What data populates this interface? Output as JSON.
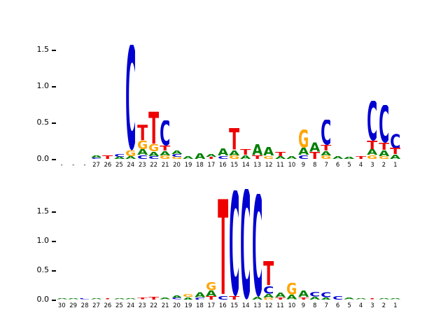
{
  "figure": {
    "background": "#ffffff",
    "title": "",
    "xlabel": "",
    "ylabel": ""
  },
  "colors": {
    "A": "#007f00",
    "C": "#0000d0",
    "G": "#ffa500",
    "T": "#ee0000"
  },
  "chart_data": [
    {
      "type": "sequence_logo",
      "panel": "top",
      "title": "",
      "xlabel": "",
      "ylabel": "",
      "ylim": [
        0,
        1.75
      ],
      "yticks": [
        0,
        0.5,
        1.0,
        1.5
      ],
      "ytick_labels": [
        "0.0",
        "0.5",
        "1.0",
        "1.5"
      ],
      "positions": [
        {
          "label": "-",
          "stack": []
        },
        {
          "label": "-",
          "stack": []
        },
        {
          "label": "-",
          "stack": []
        },
        {
          "label": "27",
          "stack": [
            {
              "base": "C",
              "height": 0.02
            },
            {
              "base": "A",
              "height": 0.03
            }
          ]
        },
        {
          "label": "26",
          "stack": [
            {
              "base": "T",
              "height": 0.05
            }
          ]
        },
        {
          "label": "25",
          "stack": [
            {
              "base": "A",
              "height": 0.03
            },
            {
              "base": "C",
              "height": 0.04
            }
          ]
        },
        {
          "label": "24",
          "stack": [
            {
              "base": "A",
              "height": 0.04
            },
            {
              "base": "G",
              "height": 0.08
            },
            {
              "base": "C",
              "height": 1.45
            }
          ]
        },
        {
          "label": "23",
          "stack": [
            {
              "base": "C",
              "height": 0.05
            },
            {
              "base": "A",
              "height": 0.08
            },
            {
              "base": "G",
              "height": 0.12
            },
            {
              "base": "T",
              "height": 0.22
            }
          ]
        },
        {
          "label": "22",
          "stack": [
            {
              "base": "C",
              "height": 0.04
            },
            {
              "base": "A",
              "height": 0.06
            },
            {
              "base": "G",
              "height": 0.1
            },
            {
              "base": "T",
              "height": 0.45
            }
          ]
        },
        {
          "label": "21",
          "stack": [
            {
              "base": "G",
              "height": 0.05
            },
            {
              "base": "A",
              "height": 0.06
            },
            {
              "base": "T",
              "height": 0.07
            },
            {
              "base": "C",
              "height": 0.35
            }
          ]
        },
        {
          "label": "20",
          "stack": [
            {
              "base": "G",
              "height": 0.03
            },
            {
              "base": "C",
              "height": 0.04
            },
            {
              "base": "A",
              "height": 0.05
            }
          ]
        },
        {
          "label": "19",
          "stack": [
            {
              "base": "A",
              "height": 0.04
            }
          ]
        },
        {
          "label": "18",
          "stack": [
            {
              "base": "A",
              "height": 0.08
            }
          ]
        },
        {
          "label": "17",
          "stack": [
            {
              "base": "T",
              "height": 0.03
            },
            {
              "base": "A",
              "height": 0.04
            }
          ]
        },
        {
          "label": "16",
          "stack": [
            {
              "base": "C",
              "height": 0.04
            },
            {
              "base": "A",
              "height": 0.1
            }
          ]
        },
        {
          "label": "15",
          "stack": [
            {
              "base": "G",
              "height": 0.05
            },
            {
              "base": "A",
              "height": 0.07
            },
            {
              "base": "T",
              "height": 0.3
            }
          ]
        },
        {
          "label": "14",
          "stack": [
            {
              "base": "A",
              "height": 0.05
            },
            {
              "base": "T",
              "height": 0.08
            }
          ]
        },
        {
          "label": "13",
          "stack": [
            {
              "base": "T",
              "height": 0.05
            },
            {
              "base": "A",
              "height": 0.15
            }
          ]
        },
        {
          "label": "12",
          "stack": [
            {
              "base": "G",
              "height": 0.04
            },
            {
              "base": "A",
              "height": 0.12
            }
          ]
        },
        {
          "label": "11",
          "stack": [
            {
              "base": "A",
              "height": 0.04
            },
            {
              "base": "T",
              "height": 0.06
            }
          ]
        },
        {
          "label": "10",
          "stack": [
            {
              "base": "A",
              "height": 0.04
            }
          ]
        },
        {
          "label": "9",
          "stack": [
            {
              "base": "C",
              "height": 0.05
            },
            {
              "base": "A",
              "height": 0.1
            },
            {
              "base": "G",
              "height": 0.25
            }
          ]
        },
        {
          "label": "8",
          "stack": [
            {
              "base": "T",
              "height": 0.1
            },
            {
              "base": "A",
              "height": 0.13
            }
          ]
        },
        {
          "label": "7",
          "stack": [
            {
              "base": "G",
              "height": 0.05
            },
            {
              "base": "A",
              "height": 0.06
            },
            {
              "base": "T",
              "height": 0.08
            },
            {
              "base": "C",
              "height": 0.35
            }
          ]
        },
        {
          "label": "6",
          "stack": [
            {
              "base": "A",
              "height": 0.04
            }
          ]
        },
        {
          "label": "5",
          "stack": [
            {
              "base": "A",
              "height": 0.03
            }
          ]
        },
        {
          "label": "4",
          "stack": [
            {
              "base": "T",
              "height": 0.04
            }
          ]
        },
        {
          "label": "3",
          "stack": [
            {
              "base": "G",
              "height": 0.05
            },
            {
              "base": "A",
              "height": 0.08
            },
            {
              "base": "T",
              "height": 0.12
            },
            {
              "base": "C",
              "height": 0.55
            }
          ]
        },
        {
          "label": "2",
          "stack": [
            {
              "base": "G",
              "height": 0.04
            },
            {
              "base": "A",
              "height": 0.08
            },
            {
              "base": "T",
              "height": 0.1
            },
            {
              "base": "C",
              "height": 0.52
            }
          ]
        },
        {
          "label": "1",
          "stack": [
            {
              "base": "A",
              "height": 0.06
            },
            {
              "base": "T",
              "height": 0.09
            },
            {
              "base": "C",
              "height": 0.2
            }
          ]
        }
      ]
    },
    {
      "type": "sequence_logo",
      "panel": "bottom",
      "title": "",
      "xlabel": "",
      "ylabel": "",
      "ylim": [
        0,
        1.95
      ],
      "yticks": [
        0,
        0.5,
        1.0,
        1.5
      ],
      "ytick_labels": [
        "0.0",
        "0.5",
        "1.0",
        "1.5"
      ],
      "positions": [
        {
          "label": "30",
          "stack": [
            {
              "base": "A",
              "height": 0.02
            }
          ]
        },
        {
          "label": "29",
          "stack": [
            {
              "base": "A",
              "height": 0.02
            }
          ]
        },
        {
          "label": "28",
          "stack": [
            {
              "base": "C",
              "height": 0.02
            }
          ]
        },
        {
          "label": "27",
          "stack": [
            {
              "base": "A",
              "height": 0.02
            }
          ]
        },
        {
          "label": "26",
          "stack": [
            {
              "base": "T",
              "height": 0.02
            }
          ]
        },
        {
          "label": "25",
          "stack": [
            {
              "base": "A",
              "height": 0.02
            }
          ]
        },
        {
          "label": "24",
          "stack": [
            {
              "base": "A",
              "height": 0.02
            }
          ]
        },
        {
          "label": "23",
          "stack": [
            {
              "base": "T",
              "height": 0.03
            }
          ]
        },
        {
          "label": "22",
          "stack": [
            {
              "base": "T",
              "height": 0.05
            }
          ]
        },
        {
          "label": "21",
          "stack": [
            {
              "base": "A",
              "height": 0.03
            }
          ]
        },
        {
          "label": "20",
          "stack": [
            {
              "base": "C",
              "height": 0.03
            },
            {
              "base": "A",
              "height": 0.04
            }
          ]
        },
        {
          "label": "19",
          "stack": [
            {
              "base": "A",
              "height": 0.04
            },
            {
              "base": "G",
              "height": 0.05
            }
          ]
        },
        {
          "label": "18",
          "stack": [
            {
              "base": "C",
              "height": 0.04
            },
            {
              "base": "A",
              "height": 0.09
            }
          ]
        },
        {
          "label": "17",
          "stack": [
            {
              "base": "T",
              "height": 0.06
            },
            {
              "base": "A",
              "height": 0.1
            },
            {
              "base": "G",
              "height": 0.14
            }
          ]
        },
        {
          "label": "16",
          "stack": [
            {
              "base": "C",
              "height": 0.06
            },
            {
              "base": "T",
              "height": 1.65
            }
          ]
        },
        {
          "label": "15",
          "stack": [
            {
              "base": "T",
              "height": 0.06
            },
            {
              "base": "C",
              "height": 1.8
            }
          ]
        },
        {
          "label": "14",
          "stack": [
            {
              "base": "C",
              "height": 1.88
            }
          ]
        },
        {
          "label": "13",
          "stack": [
            {
              "base": "A",
              "height": 0.05
            },
            {
              "base": "C",
              "height": 1.75
            }
          ]
        },
        {
          "label": "12",
          "stack": [
            {
              "base": "G",
              "height": 0.04
            },
            {
              "base": "A",
              "height": 0.06
            },
            {
              "base": "C",
              "height": 0.13
            },
            {
              "base": "T",
              "height": 0.42
            }
          ]
        },
        {
          "label": "11",
          "stack": [
            {
              "base": "T",
              "height": 0.04
            },
            {
              "base": "A",
              "height": 0.08
            }
          ]
        },
        {
          "label": "10",
          "stack": [
            {
              "base": "A",
              "height": 0.08
            },
            {
              "base": "G",
              "height": 0.2
            }
          ]
        },
        {
          "label": "9",
          "stack": [
            {
              "base": "T",
              "height": 0.04
            },
            {
              "base": "A",
              "height": 0.11
            }
          ]
        },
        {
          "label": "8",
          "stack": [
            {
              "base": "A",
              "height": 0.05
            },
            {
              "base": "C",
              "height": 0.08
            }
          ]
        },
        {
          "label": "7",
          "stack": [
            {
              "base": "A",
              "height": 0.04
            },
            {
              "base": "C",
              "height": 0.09
            }
          ]
        },
        {
          "label": "6",
          "stack": [
            {
              "base": "C",
              "height": 0.06
            }
          ]
        },
        {
          "label": "5",
          "stack": [
            {
              "base": "A",
              "height": 0.03
            }
          ]
        },
        {
          "label": "4",
          "stack": [
            {
              "base": "A",
              "height": 0.02
            }
          ]
        },
        {
          "label": "3",
          "stack": [
            {
              "base": "T",
              "height": 0.02
            }
          ]
        },
        {
          "label": "2",
          "stack": [
            {
              "base": "A",
              "height": 0.02
            }
          ]
        },
        {
          "label": "1",
          "stack": [
            {
              "base": "A",
              "height": 0.02
            }
          ]
        }
      ]
    }
  ]
}
